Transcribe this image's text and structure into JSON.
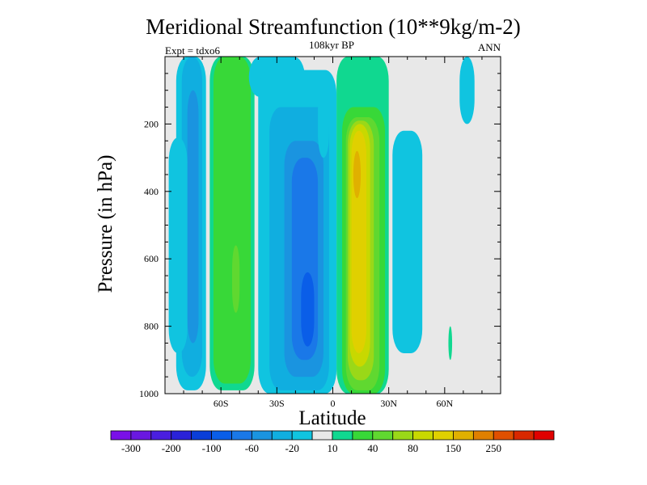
{
  "chart_data": {
    "type": "heatmap",
    "title": "Meridional Streamfunction (10**9kg/m-2)",
    "subtitle": "108kyr BP",
    "left_annotation": "Expt = tdxo6",
    "right_annotation": "ANN",
    "xlabel": "Latitude",
    "ylabel": "Pressure (in hPa)",
    "xlim": [
      -90,
      90
    ],
    "ylim": [
      0,
      1000
    ],
    "y_inverted": true,
    "x_tick_labels": [
      {
        "value": -60,
        "label": "60S"
      },
      {
        "value": -30,
        "label": "30S"
      },
      {
        "value": 0,
        "label": "0"
      },
      {
        "value": 30,
        "label": "30N"
      },
      {
        "value": 60,
        "label": "60N"
      }
    ],
    "y_tick_labels": [
      {
        "value": 200,
        "label": "200"
      },
      {
        "value": 400,
        "label": "400"
      },
      {
        "value": 600,
        "label": "600"
      },
      {
        "value": 800,
        "label": "800"
      },
      {
        "value": 1000,
        "label": "1000"
      }
    ],
    "background_color": "#e8e8e8",
    "colorbar": {
      "colors": [
        "#7a10e8",
        "#6a18e0",
        "#4a1ee0",
        "#2a22d8",
        "#0a3ed8",
        "#0a5ee8",
        "#1a78e8",
        "#1a94e0",
        "#10aee0",
        "#10c4e0",
        "#e8e8e8",
        "#10d890",
        "#38d838",
        "#60d830",
        "#9ad818",
        "#c8d800",
        "#e0d000",
        "#e0b000",
        "#e08000",
        "#e05000",
        "#d82800",
        "#e00000"
      ],
      "labels": [
        {
          "after_box": 1,
          "label": "-300"
        },
        {
          "after_box": 3,
          "label": "-200"
        },
        {
          "after_box": 5,
          "label": "-100"
        },
        {
          "after_box": 7,
          "label": "-60"
        },
        {
          "after_box": 9,
          "label": "-20"
        },
        {
          "after_box": 11,
          "label": "10"
        },
        {
          "after_box": 13,
          "label": "40"
        },
        {
          "after_box": 15,
          "label": "80"
        },
        {
          "after_box": 17,
          "label": "150"
        },
        {
          "after_box": 19,
          "label": "250"
        }
      ]
    },
    "regions": [
      {
        "color": "#10c4e0",
        "x": [
          -84,
          -68
        ],
        "y": [
          0,
          990
        ]
      },
      {
        "color": "#10aee0",
        "x": [
          -81,
          -70
        ],
        "y": [
          0,
          950
        ]
      },
      {
        "color": "#1a94e0",
        "x": [
          -78,
          -72
        ],
        "y": [
          100,
          850
        ]
      },
      {
        "color": "#10c4e0",
        "x": [
          -88,
          -78
        ],
        "y": [
          240,
          880
        ]
      },
      {
        "color": "#10d890",
        "x": [
          -66,
          -42
        ],
        "y": [
          0,
          990
        ]
      },
      {
        "color": "#38d838",
        "x": [
          -64,
          -44
        ],
        "y": [
          0,
          970
        ]
      },
      {
        "color": "#60d830",
        "x": [
          -54,
          -50
        ],
        "y": [
          560,
          760
        ]
      },
      {
        "color": "#10c4e0",
        "x": [
          -45,
          -15
        ],
        "y": [
          0,
          120
        ]
      },
      {
        "color": "#10c4e0",
        "x": [
          -40,
          2
        ],
        "y": [
          40,
          1000
        ]
      },
      {
        "color": "#10aee0",
        "x": [
          -34,
          -2
        ],
        "y": [
          150,
          990
        ]
      },
      {
        "color": "#1a94e0",
        "x": [
          -26,
          -5
        ],
        "y": [
          250,
          950
        ]
      },
      {
        "color": "#1a78e8",
        "x": [
          -22,
          -8
        ],
        "y": [
          300,
          900
        ]
      },
      {
        "color": "#0a5ee8",
        "x": [
          -17,
          -10
        ],
        "y": [
          640,
          860
        ]
      },
      {
        "color": "#10c4e0",
        "x": [
          -8,
          -2
        ],
        "y": [
          90,
          300
        ]
      },
      {
        "color": "#10d890",
        "x": [
          2,
          30
        ],
        "y": [
          0,
          1000
        ]
      },
      {
        "color": "#38d838",
        "x": [
          5,
          28
        ],
        "y": [
          150,
          1000
        ]
      },
      {
        "color": "#60d830",
        "x": [
          7,
          25
        ],
        "y": [
          180,
          990
        ]
      },
      {
        "color": "#9ad818",
        "x": [
          8,
          22
        ],
        "y": [
          190,
          960
        ]
      },
      {
        "color": "#c8d800",
        "x": [
          9,
          20
        ],
        "y": [
          200,
          920
        ]
      },
      {
        "color": "#e0d000",
        "x": [
          10,
          18
        ],
        "y": [
          220,
          880
        ]
      },
      {
        "color": "#e0b000",
        "x": [
          11,
          15
        ],
        "y": [
          280,
          420
        ]
      },
      {
        "color": "#10c4e0",
        "x": [
          32,
          48
        ],
        "y": [
          220,
          880
        ]
      },
      {
        "color": "#10c4e0",
        "x": [
          68,
          76
        ],
        "y": [
          0,
          200
        ]
      },
      {
        "color": "#10d890",
        "x": [
          62,
          64
        ],
        "y": [
          800,
          900
        ]
      }
    ]
  }
}
